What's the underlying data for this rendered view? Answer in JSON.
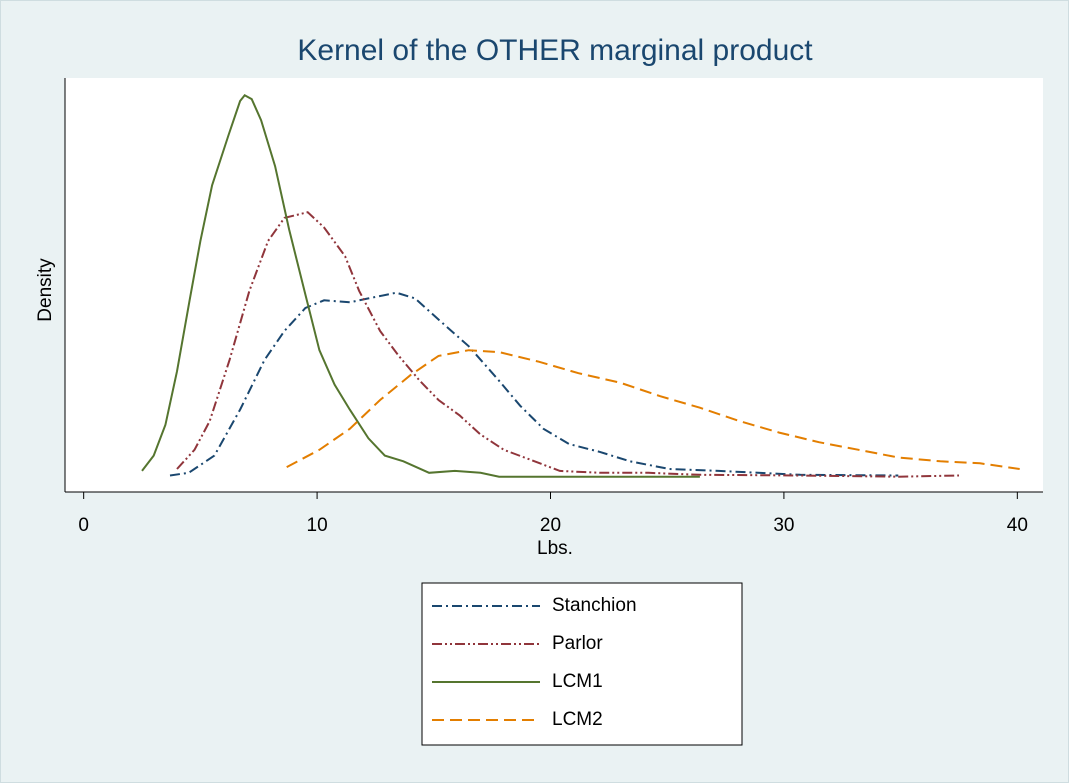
{
  "chart_data": {
    "type": "line",
    "title": "Kernel of the OTHER marginal product",
    "x_label": "Lbs.",
    "y_label": "Density",
    "xlim": [
      -0.8,
      41.1
    ],
    "ylim": [
      -0.007,
      0.209
    ],
    "xticks": [
      0,
      10,
      20,
      30,
      40
    ],
    "legend": "bottom",
    "series": [
      {
        "name": "Stanchion",
        "color": "#1a476f",
        "dash": "dashdot",
        "x": [
          3.7,
          4.5,
          5.6,
          6.7,
          7.75,
          8.6,
          9.5,
          10.3,
          11.4,
          12.2,
          13.4,
          14.2,
          15.2,
          16.5,
          17.8,
          18.7,
          19.7,
          20.8,
          22.1,
          23.4,
          25.1,
          27.2,
          30.7,
          34.9
        ],
        "values": [
          0.0016,
          0.003,
          0.012,
          0.036,
          0.062,
          0.077,
          0.089,
          0.093,
          0.092,
          0.094,
          0.097,
          0.094,
          0.083,
          0.069,
          0.051,
          0.038,
          0.026,
          0.018,
          0.014,
          0.009,
          0.005,
          0.004,
          0.002,
          0.0016
        ]
      },
      {
        "name": "Parlor",
        "color": "#90353b",
        "dash": "dashdotdot",
        "x": [
          4.0,
          4.75,
          5.4,
          6.25,
          7.1,
          7.9,
          8.6,
          9.6,
          10.3,
          11.2,
          11.8,
          12.7,
          13.5,
          14.4,
          15.2,
          16.1,
          17.0,
          18.0,
          19.1,
          20.4,
          22.1,
          24.2,
          26.4,
          30.7,
          34.9,
          37.5
        ],
        "values": [
          0.005,
          0.015,
          0.03,
          0.062,
          0.098,
          0.124,
          0.136,
          0.139,
          0.131,
          0.116,
          0.098,
          0.077,
          0.064,
          0.051,
          0.041,
          0.033,
          0.023,
          0.015,
          0.01,
          0.004,
          0.003,
          0.003,
          0.002,
          0.0016,
          0.001,
          0.0016
        ]
      },
      {
        "name": "LCM1",
        "color": "#55752f",
        "dash": "solid",
        "x": [
          2.5,
          3.0,
          3.5,
          4.0,
          4.54,
          5.0,
          5.5,
          6.2,
          6.7,
          6.9,
          7.2,
          7.6,
          8.2,
          8.8,
          9.5,
          10.1,
          10.75,
          11.4,
          12.2,
          12.9,
          13.7,
          14.8,
          15.9,
          17.0,
          17.8,
          26.4
        ],
        "values": [
          0.004,
          0.012,
          0.028,
          0.056,
          0.093,
          0.124,
          0.153,
          0.179,
          0.197,
          0.2,
          0.198,
          0.187,
          0.163,
          0.13,
          0.096,
          0.067,
          0.049,
          0.036,
          0.021,
          0.012,
          0.009,
          0.003,
          0.004,
          0.003,
          0.001,
          0.001
        ]
      },
      {
        "name": "LCM2",
        "color": "#e37e00",
        "dash": "dash",
        "x": [
          8.7,
          10.1,
          11.4,
          12.7,
          14.0,
          15.2,
          16.5,
          17.8,
          19.5,
          21.2,
          23.0,
          24.7,
          26.4,
          28.1,
          29.8,
          31.5,
          33.2,
          34.9,
          36.7,
          38.4,
          40.1
        ],
        "values": [
          0.006,
          0.015,
          0.026,
          0.041,
          0.054,
          0.064,
          0.067,
          0.066,
          0.061,
          0.055,
          0.05,
          0.043,
          0.037,
          0.03,
          0.024,
          0.019,
          0.015,
          0.011,
          0.009,
          0.008,
          0.005
        ]
      }
    ]
  }
}
